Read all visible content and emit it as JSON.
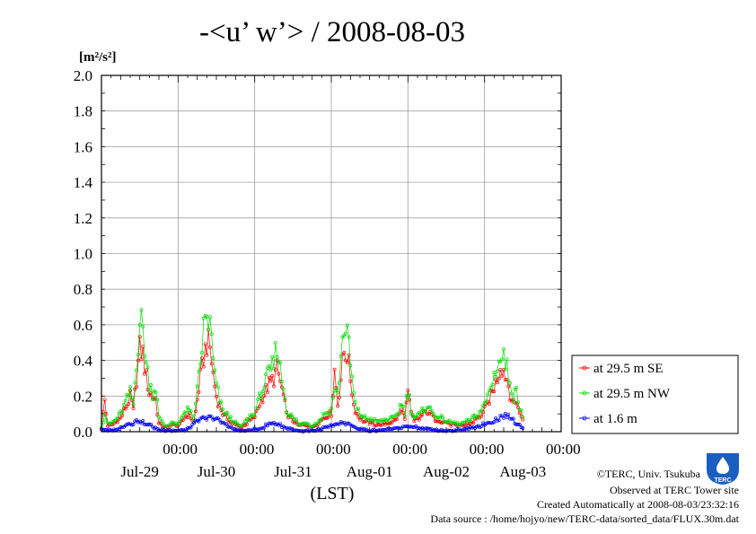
{
  "chart_data": {
    "type": "line",
    "title": "-<u’ w’> / 2008-08-03",
    "ylabel": "[m²/s²]",
    "xlabel": "(LST)",
    "ylim": [
      0,
      2.0
    ],
    "y_ticks": [
      "0.0",
      "0.2",
      "0.4",
      "0.6",
      "0.8",
      "1.0",
      "1.2",
      "1.4",
      "1.6",
      "1.8",
      "2.0"
    ],
    "x_range_hours": [
      0,
      144
    ],
    "x_ticks": [
      {
        "time": "00:00",
        "date": "Jul-29"
      },
      {
        "time": "00:00",
        "date": "Jul-30"
      },
      {
        "time": "00:00",
        "date": "Jul-31"
      },
      {
        "time": "00:00",
        "date": "Aug-01"
      },
      {
        "time": "00:00",
        "date": "Aug-02"
      },
      {
        "time": "00:00",
        "date": "Aug-03"
      }
    ],
    "grid": true,
    "legend_position": "right",
    "series": [
      {
        "name": "at 29.5 m SE",
        "color": "#ff0000",
        "anchors": [
          [
            0,
            0.02
          ],
          [
            1,
            0.18
          ],
          [
            2,
            0.03
          ],
          [
            4,
            0.05
          ],
          [
            6,
            0.08
          ],
          [
            8,
            0.15
          ],
          [
            9,
            0.2
          ],
          [
            10,
            0.12
          ],
          [
            11,
            0.3
          ],
          [
            12,
            0.46
          ],
          [
            13,
            0.44
          ],
          [
            14,
            0.3
          ],
          [
            15,
            0.22
          ],
          [
            16,
            0.2
          ],
          [
            17,
            0.18
          ],
          [
            18,
            0.05
          ],
          [
            20,
            0.02
          ],
          [
            22,
            0.04
          ],
          [
            24,
            0.03
          ],
          [
            27,
            0.1
          ],
          [
            29,
            0.05
          ],
          [
            31,
            0.3
          ],
          [
            32,
            0.42
          ],
          [
            33,
            0.5
          ],
          [
            34,
            0.47
          ],
          [
            35,
            0.32
          ],
          [
            36,
            0.2
          ],
          [
            37,
            0.15
          ],
          [
            38,
            0.1
          ],
          [
            39,
            0.08
          ],
          [
            40,
            0.06
          ],
          [
            42,
            0.04
          ],
          [
            44,
            0.02
          ],
          [
            46,
            0.06
          ],
          [
            48,
            0.08
          ],
          [
            50,
            0.18
          ],
          [
            52,
            0.25
          ],
          [
            54,
            0.3
          ],
          [
            55,
            0.35
          ],
          [
            56,
            0.28
          ],
          [
            57,
            0.2
          ],
          [
            58,
            0.1
          ],
          [
            60,
            0.06
          ],
          [
            62,
            0.03
          ],
          [
            64,
            0.04
          ],
          [
            66,
            0.02
          ],
          [
            68,
            0.05
          ],
          [
            70,
            0.08
          ],
          [
            72,
            0.1
          ],
          [
            73,
            0.35
          ],
          [
            74,
            0.15
          ],
          [
            75,
            0.3
          ],
          [
            76,
            0.45
          ],
          [
            77,
            0.44
          ],
          [
            78,
            0.3
          ],
          [
            79,
            0.15
          ],
          [
            80,
            0.1
          ],
          [
            82,
            0.06
          ],
          [
            84,
            0.05
          ],
          [
            86,
            0.04
          ],
          [
            88,
            0.04
          ],
          [
            90,
            0.05
          ],
          [
            92,
            0.06
          ],
          [
            94,
            0.12
          ],
          [
            95,
            0.08
          ],
          [
            96,
            0.22
          ],
          [
            97,
            0.1
          ],
          [
            98,
            0.06
          ],
          [
            100,
            0.08
          ],
          [
            102,
            0.12
          ],
          [
            104,
            0.08
          ],
          [
            106,
            0.06
          ],
          [
            108,
            0.05
          ],
          [
            110,
            0.04
          ],
          [
            112,
            0.03
          ],
          [
            114,
            0.04
          ],
          [
            116,
            0.05
          ],
          [
            118,
            0.08
          ],
          [
            120,
            0.12
          ],
          [
            122,
            0.2
          ],
          [
            124,
            0.3
          ],
          [
            125,
            0.38
          ],
          [
            126,
            0.35
          ],
          [
            127,
            0.3
          ],
          [
            128,
            0.22
          ],
          [
            129,
            0.15
          ],
          [
            130,
            0.18
          ],
          [
            131,
            0.1
          ],
          [
            132,
            0.08
          ]
        ]
      },
      {
        "name": "at 29.5 m NW",
        "color": "#00dd00",
        "anchors": [
          [
            0,
            0.03
          ],
          [
            1,
            0.1
          ],
          [
            2,
            0.04
          ],
          [
            4,
            0.06
          ],
          [
            6,
            0.1
          ],
          [
            8,
            0.18
          ],
          [
            9,
            0.22
          ],
          [
            10,
            0.15
          ],
          [
            11,
            0.4
          ],
          [
            12,
            0.62
          ],
          [
            13,
            0.58
          ],
          [
            14,
            0.38
          ],
          [
            15,
            0.28
          ],
          [
            16,
            0.22
          ],
          [
            17,
            0.25
          ],
          [
            18,
            0.08
          ],
          [
            20,
            0.03
          ],
          [
            22,
            0.05
          ],
          [
            24,
            0.04
          ],
          [
            27,
            0.14
          ],
          [
            29,
            0.06
          ],
          [
            31,
            0.38
          ],
          [
            32,
            0.58
          ],
          [
            33,
            0.64
          ],
          [
            34,
            0.6
          ],
          [
            35,
            0.4
          ],
          [
            36,
            0.25
          ],
          [
            37,
            0.18
          ],
          [
            38,
            0.12
          ],
          [
            39,
            0.1
          ],
          [
            40,
            0.08
          ],
          [
            42,
            0.05
          ],
          [
            44,
            0.03
          ],
          [
            46,
            0.08
          ],
          [
            48,
            0.1
          ],
          [
            50,
            0.22
          ],
          [
            52,
            0.3
          ],
          [
            54,
            0.38
          ],
          [
            55,
            0.5
          ],
          [
            56,
            0.35
          ],
          [
            57,
            0.25
          ],
          [
            58,
            0.12
          ],
          [
            60,
            0.08
          ],
          [
            62,
            0.04
          ],
          [
            64,
            0.05
          ],
          [
            66,
            0.03
          ],
          [
            68,
            0.06
          ],
          [
            70,
            0.1
          ],
          [
            72,
            0.12
          ],
          [
            73,
            0.25
          ],
          [
            74,
            0.2
          ],
          [
            75,
            0.42
          ],
          [
            76,
            0.6
          ],
          [
            77,
            0.55
          ],
          [
            78,
            0.38
          ],
          [
            79,
            0.2
          ],
          [
            80,
            0.12
          ],
          [
            82,
            0.08
          ],
          [
            84,
            0.07
          ],
          [
            86,
            0.06
          ],
          [
            88,
            0.06
          ],
          [
            90,
            0.07
          ],
          [
            92,
            0.08
          ],
          [
            94,
            0.16
          ],
          [
            95,
            0.1
          ],
          [
            96,
            0.25
          ],
          [
            97,
            0.12
          ],
          [
            98,
            0.08
          ],
          [
            100,
            0.1
          ],
          [
            102,
            0.15
          ],
          [
            104,
            0.1
          ],
          [
            106,
            0.08
          ],
          [
            108,
            0.06
          ],
          [
            110,
            0.05
          ],
          [
            112,
            0.04
          ],
          [
            114,
            0.05
          ],
          [
            116,
            0.07
          ],
          [
            118,
            0.1
          ],
          [
            120,
            0.15
          ],
          [
            122,
            0.25
          ],
          [
            124,
            0.38
          ],
          [
            125,
            0.4
          ],
          [
            126,
            0.42
          ],
          [
            127,
            0.35
          ],
          [
            128,
            0.3
          ],
          [
            129,
            0.2
          ],
          [
            130,
            0.22
          ],
          [
            131,
            0.15
          ],
          [
            132,
            0.1
          ]
        ]
      },
      {
        "name": "at 1.6 m",
        "color": "#0000ff",
        "anchors": [
          [
            0,
            0.01
          ],
          [
            2,
            0.005
          ],
          [
            4,
            0.01
          ],
          [
            6,
            0.02
          ],
          [
            8,
            0.04
          ],
          [
            10,
            0.05
          ],
          [
            12,
            0.06
          ],
          [
            14,
            0.04
          ],
          [
            16,
            0.03
          ],
          [
            18,
            0.01
          ],
          [
            22,
            0.005
          ],
          [
            26,
            0.01
          ],
          [
            28,
            0.03
          ],
          [
            30,
            0.06
          ],
          [
            32,
            0.07
          ],
          [
            34,
            0.08
          ],
          [
            36,
            0.07
          ],
          [
            38,
            0.05
          ],
          [
            40,
            0.03
          ],
          [
            42,
            0.01
          ],
          [
            46,
            0.005
          ],
          [
            50,
            0.02
          ],
          [
            52,
            0.04
          ],
          [
            54,
            0.05
          ],
          [
            56,
            0.04
          ],
          [
            58,
            0.02
          ],
          [
            62,
            0.005
          ],
          [
            66,
            0.005
          ],
          [
            70,
            0.02
          ],
          [
            72,
            0.03
          ],
          [
            74,
            0.04
          ],
          [
            76,
            0.05
          ],
          [
            78,
            0.04
          ],
          [
            80,
            0.02
          ],
          [
            84,
            0.005
          ],
          [
            88,
            0.01
          ],
          [
            92,
            0.02
          ],
          [
            96,
            0.03
          ],
          [
            100,
            0.02
          ],
          [
            104,
            0.01
          ],
          [
            108,
            0.005
          ],
          [
            112,
            0.01
          ],
          [
            116,
            0.02
          ],
          [
            120,
            0.04
          ],
          [
            124,
            0.07
          ],
          [
            126,
            0.09
          ],
          [
            128,
            0.08
          ],
          [
            130,
            0.05
          ],
          [
            132,
            0.02
          ]
        ]
      }
    ]
  },
  "credits": {
    "copyright": "©TERC, Univ. Tsukuba",
    "observed": "Observed at TERC Tower site",
    "created": "Created Automatically at 2008-08-03/23:32:16",
    "source": "Data source : /home/hojyo/new/TERC-data/sorted_data/FLUX.30m.dat"
  },
  "logo": {
    "text": "TERC",
    "color": "#1a5fc0"
  }
}
